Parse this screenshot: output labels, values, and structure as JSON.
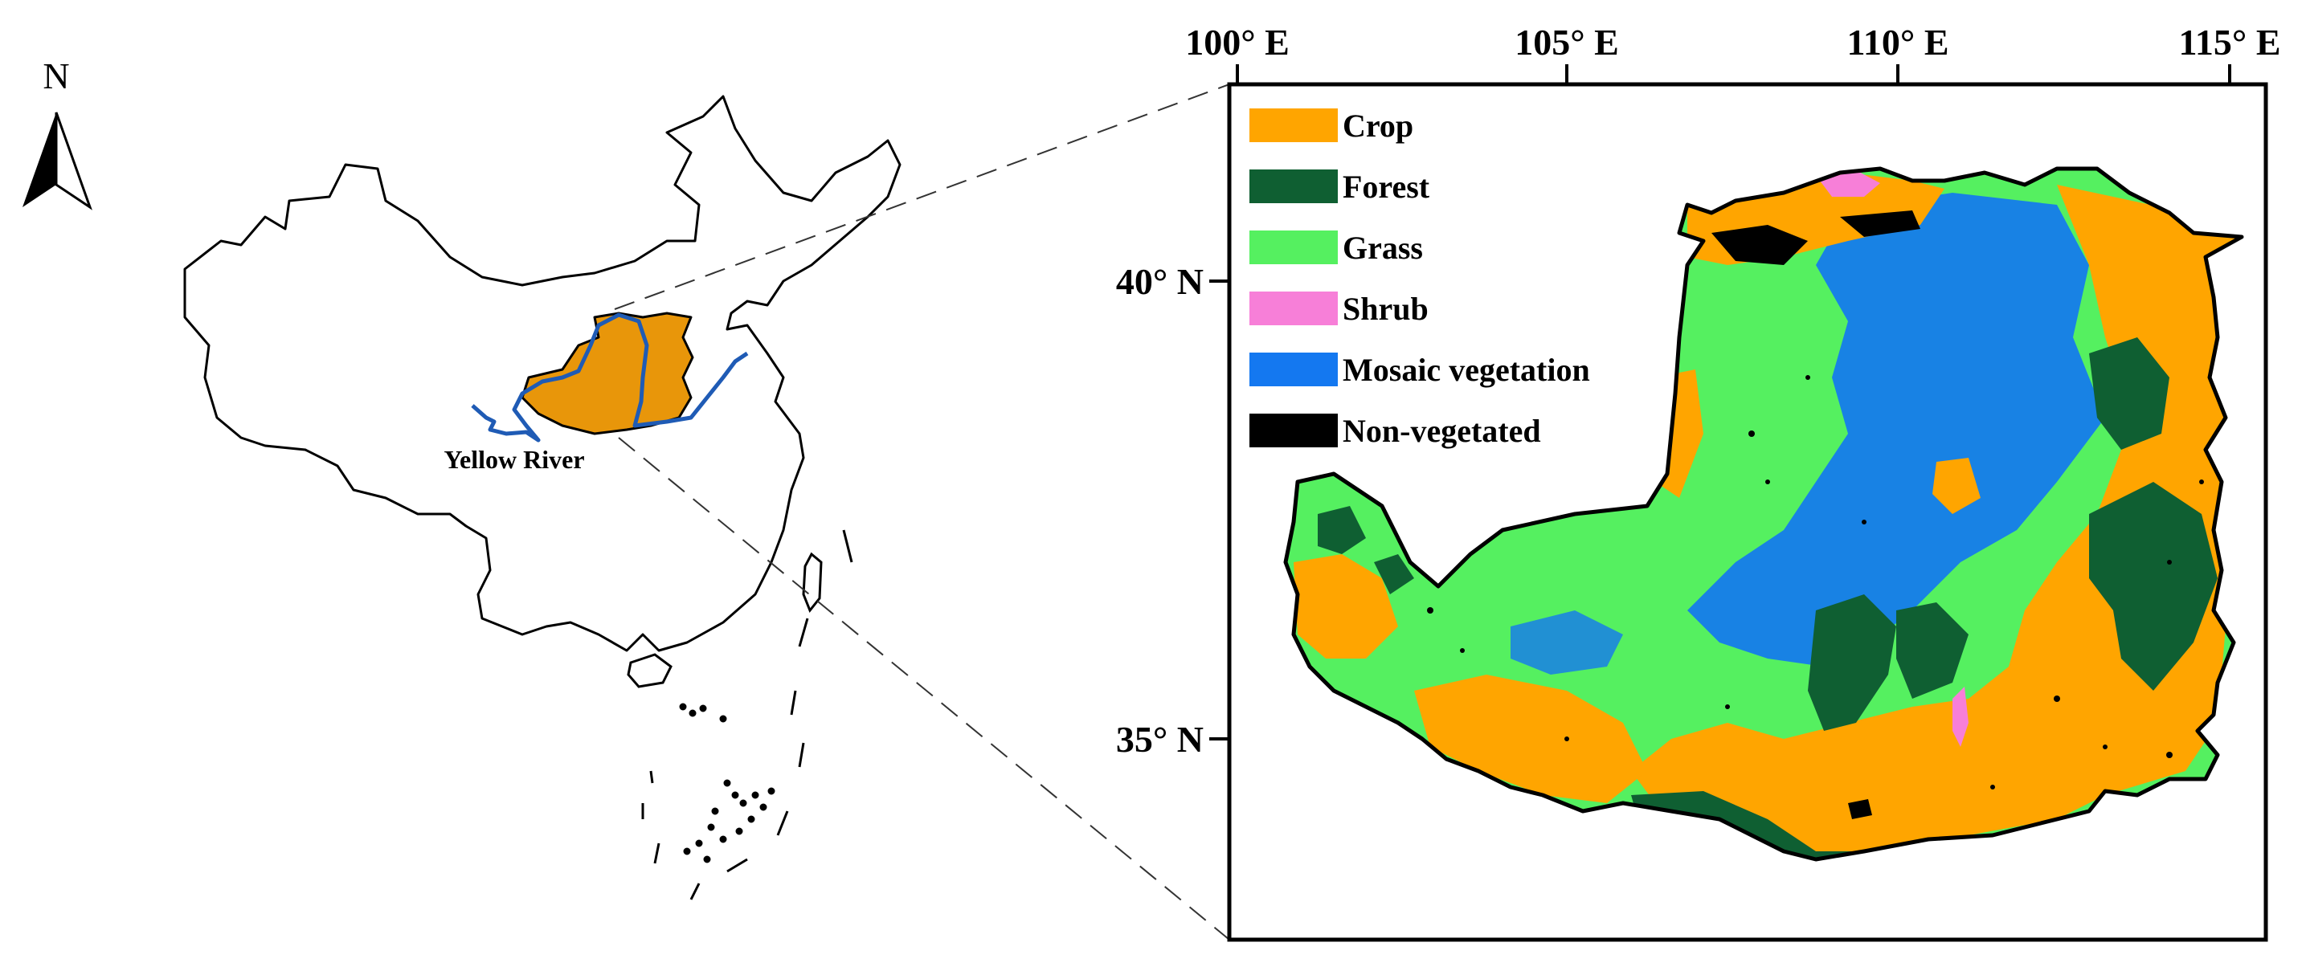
{
  "north_arrow": {
    "label": "N"
  },
  "overview": {
    "river_label": "Yellow River"
  },
  "map": {
    "lon_ticks": [
      "100° E",
      "105° E",
      "110° E",
      "115° E"
    ],
    "lat_ticks": [
      "40° N",
      "35° N"
    ]
  },
  "legend": [
    {
      "label": "Crop",
      "color": "#FFA500"
    },
    {
      "label": "Forest",
      "color": "#0F5F32"
    },
    {
      "label": "Grass",
      "color": "#55F060"
    },
    {
      "label": "Shrub",
      "color": "#F77FD8"
    },
    {
      "label": "Mosaic vegetation",
      "color": "#1478F0"
    },
    {
      "label": "Non-vegetated",
      "color": "#000000"
    }
  ],
  "colors": {
    "region_fill": "#E8960A",
    "river": "#1F5BB5"
  }
}
